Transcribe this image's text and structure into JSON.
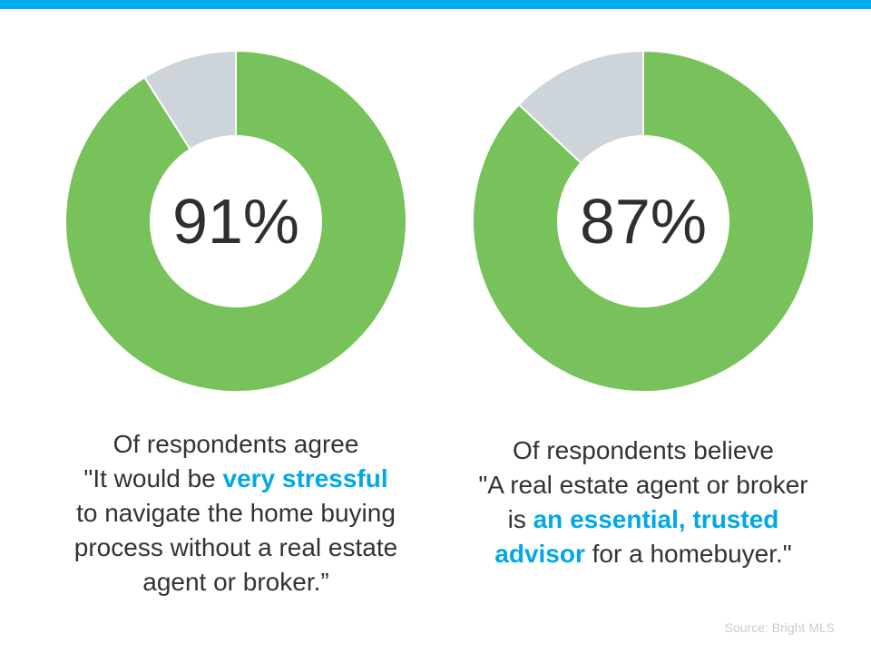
{
  "colors": {
    "accent_bar": "#00ADEF",
    "primary_slice": "#77C25A",
    "remainder_slice": "#CDD5DA",
    "highlight_text": "#00A9E6",
    "center_text": "#2F2F2F"
  },
  "chart_data": [
    {
      "type": "pie",
      "variant": "donut",
      "center_label": "91%",
      "values": [
        91,
        9
      ],
      "slice_colors": [
        "#77C25A",
        "#CDD5DA"
      ],
      "caption": {
        "lines": [
          [
            {
              "text": "Of respondents agree"
            }
          ],
          [
            {
              "text": "\"It would be "
            },
            {
              "text": "very stressful",
              "highlight": true
            }
          ],
          [
            {
              "text": "to navigate the home buying"
            }
          ],
          [
            {
              "text": "process without a real estate"
            }
          ],
          [
            {
              "text": "agent or broker.”"
            }
          ]
        ]
      }
    },
    {
      "type": "pie",
      "variant": "donut",
      "center_label": "87%",
      "values": [
        87,
        13
      ],
      "slice_colors": [
        "#77C25A",
        "#CDD5DA"
      ],
      "caption": {
        "lines": [
          [
            {
              "text": "Of respondents believe"
            }
          ],
          [
            {
              "text": "\"A real estate agent or broker"
            }
          ],
          [
            {
              "text": "is "
            },
            {
              "text": "an essential, trusted",
              "highlight": true
            }
          ],
          [
            {
              "text": "advisor",
              "highlight": true
            },
            {
              "text": " for a homebuyer.\""
            }
          ]
        ]
      }
    }
  ],
  "source": "Source: Bright MLS"
}
